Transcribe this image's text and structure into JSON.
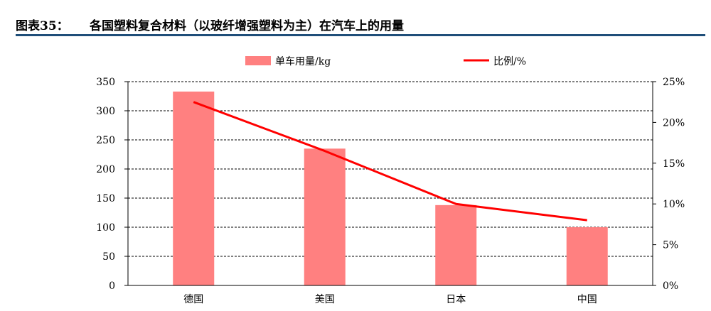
{
  "figure": {
    "label": "图表35：",
    "title": "各国塑料复合材料（以玻纤增强塑料为主）在汽车上的用量"
  },
  "chart_data": {
    "type": "bar",
    "categories": [
      "德国",
      "美国",
      "日本",
      "中国"
    ],
    "series": [
      {
        "name": "单车用量/kg",
        "type": "bar",
        "axis": "left",
        "values": [
          333,
          235,
          138,
          100
        ],
        "color": "#ff8080"
      },
      {
        "name": "比例/%",
        "type": "line",
        "axis": "right",
        "values": [
          22.5,
          16.5,
          10.0,
          8.0
        ],
        "color": "#ff0000"
      }
    ],
    "y_left": {
      "min": 0,
      "max": 350,
      "ticks": [
        "0",
        "50",
        "100",
        "150",
        "200",
        "250",
        "300",
        "350"
      ]
    },
    "y_right": {
      "min": 0,
      "max": 25,
      "ticks": [
        "0%",
        "5%",
        "10%",
        "15%",
        "20%",
        "25%"
      ]
    },
    "grid": "dashed-horizontal",
    "legend_position": "top"
  }
}
